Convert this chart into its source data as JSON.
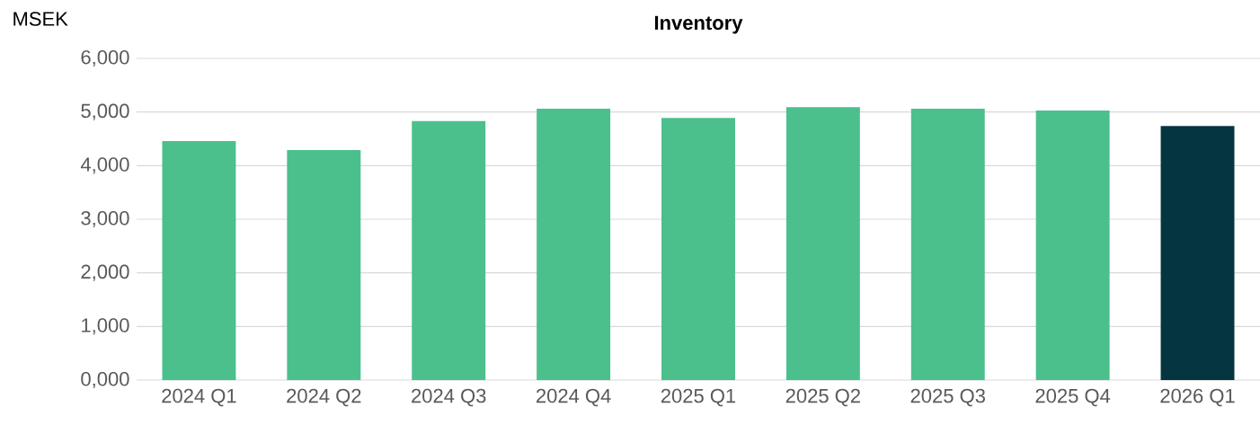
{
  "chart_data": {
    "type": "bar",
    "title": "Inventory",
    "ylabel": "MSEK",
    "categories": [
      "2024 Q1",
      "2024 Q2",
      "2024 Q3",
      "2024 Q4",
      "2025 Q1",
      "2025 Q2",
      "2025 Q3",
      "2025 Q4",
      "2026 Q1"
    ],
    "values": [
      4460,
      4290,
      4830,
      5060,
      4890,
      5090,
      5060,
      5030,
      4740
    ],
    "colors": [
      "#4bc08c",
      "#4bc08c",
      "#4bc08c",
      "#4bc08c",
      "#4bc08c",
      "#4bc08c",
      "#4bc08c",
      "#4bc08c",
      "#05363f"
    ],
    "ylim": [
      0,
      6000
    ],
    "yticks": [
      {
        "value": 0,
        "label": "0,000"
      },
      {
        "value": 1000,
        "label": "1,000"
      },
      {
        "value": 2000,
        "label": "2,000"
      },
      {
        "value": 3000,
        "label": "3,000"
      },
      {
        "value": 4000,
        "label": "4,000"
      },
      {
        "value": 5000,
        "label": "5,000"
      },
      {
        "value": 6000,
        "label": "6,000"
      }
    ],
    "grid": "y"
  }
}
